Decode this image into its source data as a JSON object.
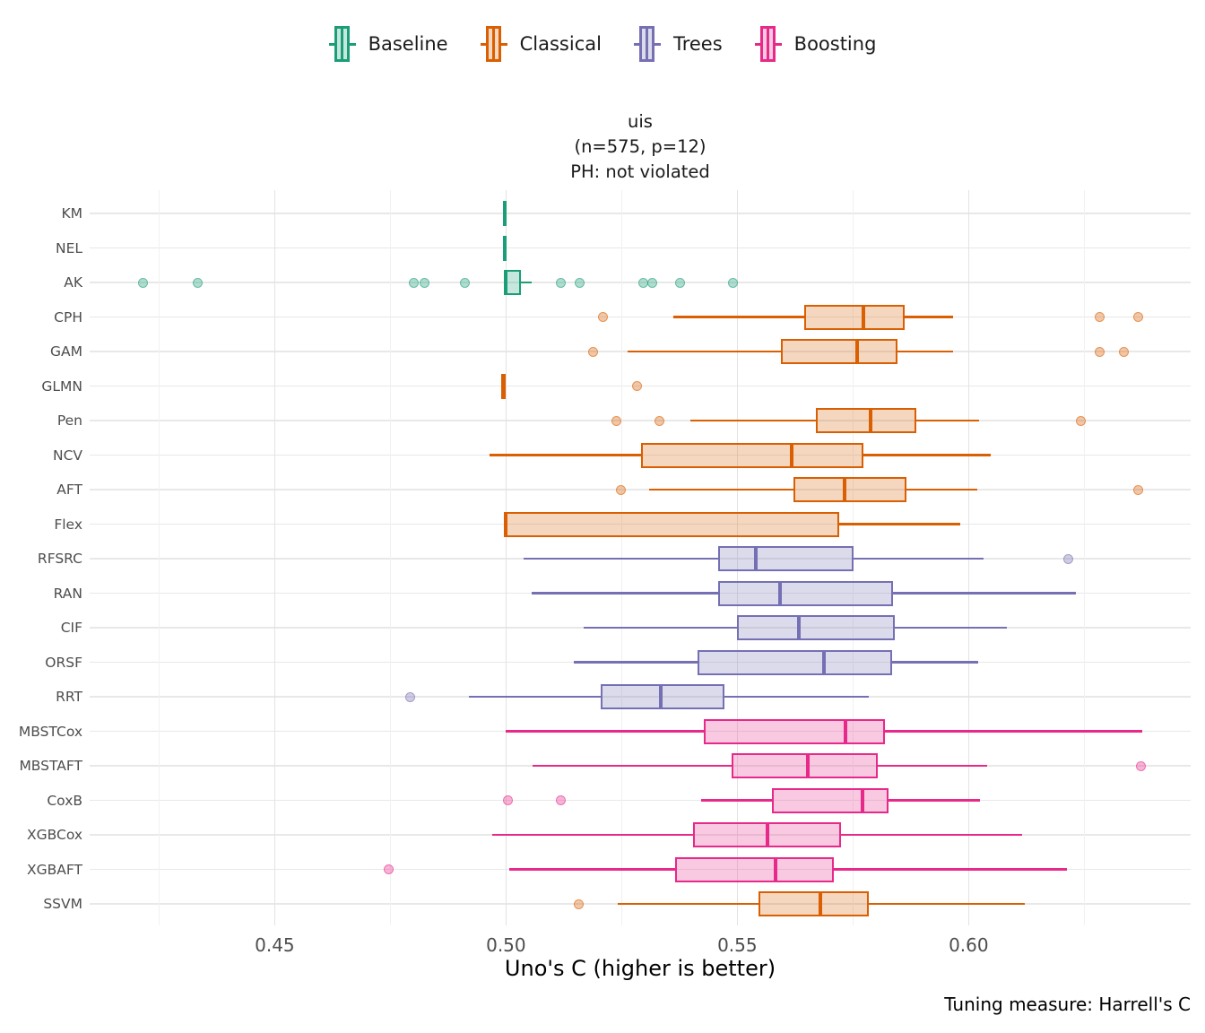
{
  "legend": {
    "items": [
      {
        "label": "Baseline",
        "color": "#1B9E77",
        "fill": "#C6E7DD"
      },
      {
        "label": "Classical",
        "color": "#D95F02",
        "fill": "#F6D7C0"
      },
      {
        "label": "Trees",
        "color": "#7570B3",
        "fill": "#DCDBEC"
      },
      {
        "label": "Boosting",
        "color": "#E7298A",
        "fill": "#F9CAE2"
      }
    ]
  },
  "title": {
    "line1": "uis",
    "line2": "(n=575, p=12)",
    "line3": "PH: not violated"
  },
  "axis": {
    "x_label": "Uno's C (higher is better)"
  },
  "caption": "Tuning measure: Harrell's C",
  "chart_data": {
    "type": "boxplot-horizontal",
    "title": "uis (n=575, p=12) PH: not violated",
    "xlabel": "Uno's C (higher is better)",
    "xlim": [
      0.41,
      0.648
    ],
    "x_ticks": [
      0.45,
      0.5,
      0.55,
      0.6
    ],
    "x_tick_labels": [
      "0.45",
      "0.50",
      "0.55",
      "0.60"
    ],
    "x_minor_ticks": [
      0.425,
      0.475,
      0.525,
      0.575,
      0.625
    ],
    "grid": true,
    "legend_position": "top",
    "groups": {
      "Baseline": "#1B9E77",
      "Classical": "#D95F02",
      "Trees": "#7570B3",
      "Boosting": "#E7298A"
    },
    "models": [
      {
        "name": "KM",
        "group": "Baseline",
        "whisker_low": 0.4998,
        "q1": 0.4995,
        "median": 0.4998,
        "q3": 0.5002,
        "whisker_high": 0.4998,
        "outliers": []
      },
      {
        "name": "NEL",
        "group": "Baseline",
        "whisker_low": 0.4998,
        "q1": 0.4995,
        "median": 0.4998,
        "q3": 0.5002,
        "whisker_high": 0.4998,
        "outliers": []
      },
      {
        "name": "AK",
        "group": "Baseline",
        "whisker_low": 0.4996,
        "q1": 0.4996,
        "median": 0.5,
        "q3": 0.5032,
        "whisker_high": 0.5055,
        "outliers": [
          0.4215,
          0.4333,
          0.48,
          0.4823,
          0.4912,
          0.5119,
          0.5159,
          0.5297,
          0.5317,
          0.5376,
          0.549
        ]
      },
      {
        "name": "CPH",
        "group": "Classical",
        "whisker_low": 0.5362,
        "q1": 0.5645,
        "median": 0.5773,
        "q3": 0.5861,
        "whisker_high": 0.5966,
        "outliers": [
          0.5209,
          0.6284,
          0.6366
        ]
      },
      {
        "name": "GAM",
        "group": "Classical",
        "whisker_low": 0.5263,
        "q1": 0.5594,
        "median": 0.5759,
        "q3": 0.5847,
        "whisker_high": 0.5966,
        "outliers": [
          0.5189,
          0.6284,
          0.6335
        ]
      },
      {
        "name": "GLMN",
        "group": "Classical",
        "whisker_low": 0.4995,
        "q1": 0.4992,
        "median": 0.4995,
        "q3": 0.4999,
        "whisker_high": 0.4995,
        "outliers": [
          0.5283
        ]
      },
      {
        "name": "Pen",
        "group": "Classical",
        "whisker_low": 0.5398,
        "q1": 0.5669,
        "median": 0.5789,
        "q3": 0.5886,
        "whisker_high": 0.6023,
        "outliers": [
          0.5238,
          0.5332,
          0.6243
        ]
      },
      {
        "name": "NCV",
        "group": "Classical",
        "whisker_low": 0.4965,
        "q1": 0.5291,
        "median": 0.5617,
        "q3": 0.5773,
        "whisker_high": 0.6047,
        "outliers": []
      },
      {
        "name": "AFT",
        "group": "Classical",
        "whisker_low": 0.5309,
        "q1": 0.5622,
        "median": 0.5731,
        "q3": 0.5865,
        "whisker_high": 0.6018,
        "outliers": [
          0.5249,
          0.6366
        ]
      },
      {
        "name": "Flex",
        "group": "Classical",
        "whisker_low": 0.4995,
        "q1": 0.4995,
        "median": 0.4999,
        "q3": 0.5721,
        "whisker_high": 0.5982,
        "outliers": []
      },
      {
        "name": "RFSRC",
        "group": "Trees",
        "whisker_low": 0.5038,
        "q1": 0.5458,
        "median": 0.554,
        "q3": 0.5752,
        "whisker_high": 0.6033,
        "outliers": [
          0.6215
        ]
      },
      {
        "name": "RAN",
        "group": "Trees",
        "whisker_low": 0.5056,
        "q1": 0.5458,
        "median": 0.5592,
        "q3": 0.5836,
        "whisker_high": 0.6232,
        "outliers": []
      },
      {
        "name": "CIF",
        "group": "Trees",
        "whisker_low": 0.5167,
        "q1": 0.55,
        "median": 0.5634,
        "q3": 0.5841,
        "whisker_high": 0.6083,
        "outliers": []
      },
      {
        "name": "ORSF",
        "group": "Trees",
        "whisker_low": 0.5147,
        "q1": 0.5415,
        "median": 0.5687,
        "q3": 0.5834,
        "whisker_high": 0.602,
        "outliers": []
      },
      {
        "name": "RRT",
        "group": "Trees",
        "whisker_low": 0.4919,
        "q1": 0.5204,
        "median": 0.5335,
        "q3": 0.5472,
        "whisker_high": 0.5785,
        "outliers": [
          0.4793
        ]
      },
      {
        "name": "MBSTCox",
        "group": "Boosting",
        "whisker_low": 0.5,
        "q1": 0.5427,
        "median": 0.5734,
        "q3": 0.5819,
        "whisker_high": 0.6375,
        "outliers": []
      },
      {
        "name": "MBSTAFT",
        "group": "Boosting",
        "whisker_low": 0.5058,
        "q1": 0.5488,
        "median": 0.5653,
        "q3": 0.5804,
        "whisker_high": 0.604,
        "outliers": [
          0.6373
        ]
      },
      {
        "name": "CoxB",
        "group": "Boosting",
        "whisker_low": 0.5422,
        "q1": 0.5575,
        "median": 0.5771,
        "q3": 0.5827,
        "whisker_high": 0.6024,
        "outliers": [
          0.5005,
          0.5119
        ]
      },
      {
        "name": "XGBCox",
        "group": "Boosting",
        "whisker_low": 0.497,
        "q1": 0.5405,
        "median": 0.5566,
        "q3": 0.5724,
        "whisker_high": 0.6116,
        "outliers": []
      },
      {
        "name": "XGBAFT",
        "group": "Boosting",
        "whisker_low": 0.5007,
        "q1": 0.5365,
        "median": 0.5583,
        "q3": 0.5709,
        "whisker_high": 0.6212,
        "outliers": [
          0.4746
        ]
      },
      {
        "name": "SSVM",
        "group": "Classical",
        "whisker_low": 0.5242,
        "q1": 0.5545,
        "median": 0.568,
        "q3": 0.5785,
        "whisker_high": 0.6122,
        "outliers": [
          0.5158
        ]
      }
    ]
  }
}
